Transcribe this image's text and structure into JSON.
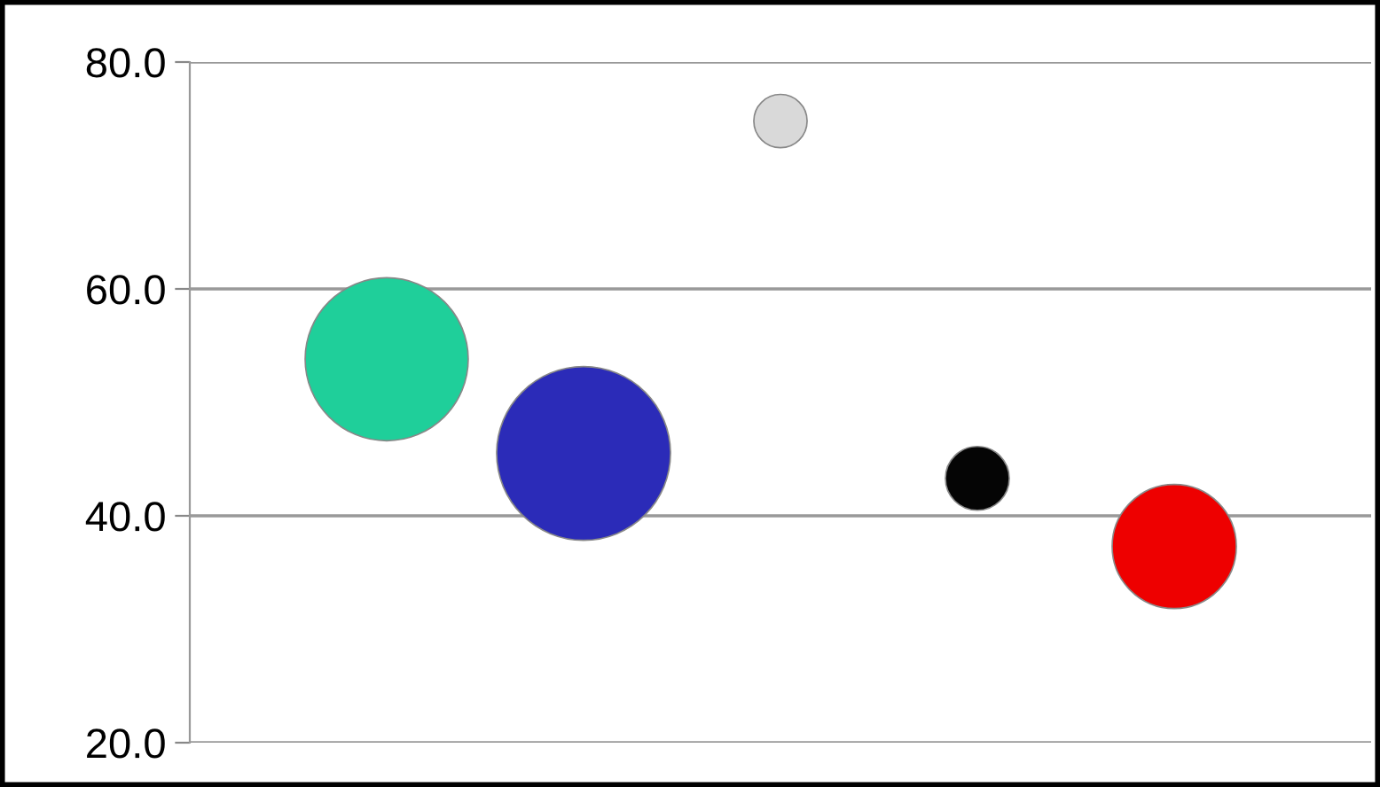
{
  "chart_data": {
    "type": "bubble",
    "categories": [
      null,
      null,
      null,
      null,
      null
    ],
    "values": [
      53.8,
      45.5,
      74.8,
      43.3,
      37.3
    ],
    "sizes": [
      0.88,
      1,
      0.094,
      0.135,
      0.51
    ],
    "colors": [
      "#1fcf9a",
      "#2b2bb8",
      "#d9d9d9",
      "#050505",
      "#ee0000"
    ],
    "ylim": [
      20,
      80
    ],
    "yticks": [
      {
        "value": 20,
        "label": "20.0"
      },
      {
        "value": 40,
        "label": "40.0"
      },
      {
        "value": 60,
        "label": "60.0"
      },
      {
        "value": 80,
        "label": "80.0"
      }
    ],
    "tick_labels": "y",
    "grid": "y"
  }
}
